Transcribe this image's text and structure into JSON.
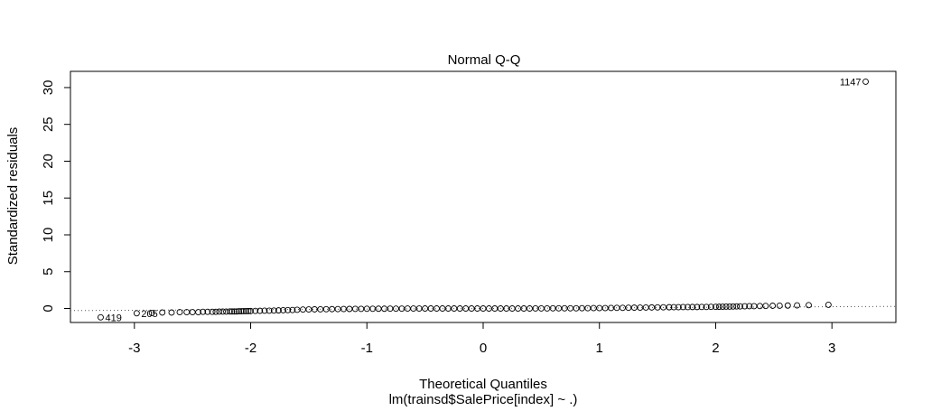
{
  "chart_data": {
    "type": "scatter",
    "title": "Normal Q-Q",
    "xlabel": "Theoretical Quantiles",
    "ylabel": "Standardized residuals",
    "sub_caption": "lm(trainsd$SalePrice[index] ~ .)",
    "xlim": [
      -3.55,
      3.55
    ],
    "ylim": [
      -1.9,
      32.2
    ],
    "x_ticks": [
      -3,
      -2,
      -1,
      0,
      1,
      2,
      3
    ],
    "y_ticks": [
      0,
      5,
      10,
      15,
      20,
      25,
      30
    ],
    "grid": false,
    "reference_line": {
      "style": "dotted",
      "slope": 0.08,
      "intercept": 0.0
    },
    "labeled_points": [
      {
        "label": "1147",
        "x": 3.29,
        "y": 30.8
      },
      {
        "label": "419",
        "x": -3.29,
        "y": -1.2
      },
      {
        "label": "205",
        "x": -2.98,
        "y": -0.65
      }
    ],
    "points_x": [
      -3.29,
      -2.98,
      -2.85,
      -2.76,
      -2.68,
      -2.61,
      -2.55,
      -2.5,
      -2.45,
      -2.41,
      -2.37,
      -2.33,
      -2.3,
      -2.27,
      -2.24,
      -2.21,
      -2.18,
      -2.16,
      -2.14,
      -2.12,
      -2.1,
      -2.08,
      -2.06,
      -2.04,
      -2.02,
      -2.0,
      -1.96,
      -1.92,
      -1.88,
      -1.84,
      -1.8,
      -1.76,
      -1.72,
      -1.68,
      -1.64,
      -1.6,
      -1.55,
      -1.5,
      -1.45,
      -1.4,
      -1.35,
      -1.3,
      -1.25,
      -1.2,
      -1.15,
      -1.1,
      -1.05,
      -1.0,
      -0.95,
      -0.9,
      -0.85,
      -0.8,
      -0.75,
      -0.7,
      -0.65,
      -0.6,
      -0.55,
      -0.5,
      -0.45,
      -0.4,
      -0.35,
      -0.3,
      -0.25,
      -0.2,
      -0.15,
      -0.1,
      -0.05,
      0.0,
      0.05,
      0.1,
      0.15,
      0.2,
      0.25,
      0.3,
      0.35,
      0.4,
      0.45,
      0.5,
      0.55,
      0.6,
      0.65,
      0.7,
      0.75,
      0.8,
      0.85,
      0.9,
      0.95,
      1.0,
      1.05,
      1.1,
      1.15,
      1.2,
      1.25,
      1.3,
      1.35,
      1.4,
      1.45,
      1.5,
      1.55,
      1.6,
      1.64,
      1.68,
      1.72,
      1.76,
      1.8,
      1.84,
      1.88,
      1.92,
      1.96,
      2.0,
      2.03,
      2.06,
      2.09,
      2.12,
      2.15,
      2.18,
      2.21,
      2.25,
      2.29,
      2.33,
      2.38,
      2.43,
      2.49,
      2.55,
      2.62,
      2.7,
      2.8,
      2.97,
      3.29
    ],
    "points_y": [
      -1.2,
      -0.65,
      -0.6,
      -0.55,
      -0.55,
      -0.5,
      -0.5,
      -0.5,
      -0.5,
      -0.45,
      -0.45,
      -0.45,
      -0.45,
      -0.42,
      -0.42,
      -0.42,
      -0.4,
      -0.4,
      -0.4,
      -0.4,
      -0.38,
      -0.38,
      -0.36,
      -0.36,
      -0.35,
      -0.35,
      -0.33,
      -0.32,
      -0.3,
      -0.3,
      -0.28,
      -0.26,
      -0.24,
      -0.22,
      -0.2,
      -0.18,
      -0.15,
      -0.13,
      -0.12,
      -0.11,
      -0.1,
      -0.09,
      -0.08,
      -0.07,
      -0.06,
      -0.05,
      -0.05,
      -0.04,
      -0.04,
      -0.03,
      -0.03,
      -0.02,
      -0.02,
      -0.02,
      -0.01,
      -0.01,
      -0.01,
      0.0,
      0.0,
      0.0,
      0.0,
      0.0,
      0.0,
      0.0,
      0.0,
      0.0,
      0.0,
      0.0,
      0.0,
      0.0,
      0.0,
      0.0,
      0.0,
      0.0,
      0.0,
      0.0,
      0.01,
      0.01,
      0.01,
      0.02,
      0.02,
      0.02,
      0.03,
      0.03,
      0.04,
      0.04,
      0.05,
      0.05,
      0.06,
      0.07,
      0.08,
      0.09,
      0.1,
      0.11,
      0.12,
      0.13,
      0.14,
      0.15,
      0.16,
      0.17,
      0.18,
      0.18,
      0.19,
      0.19,
      0.2,
      0.2,
      0.21,
      0.21,
      0.22,
      0.22,
      0.23,
      0.24,
      0.25,
      0.26,
      0.27,
      0.28,
      0.29,
      0.3,
      0.31,
      0.32,
      0.33,
      0.35,
      0.37,
      0.38,
      0.4,
      0.42,
      0.45,
      0.5,
      30.8
    ]
  }
}
